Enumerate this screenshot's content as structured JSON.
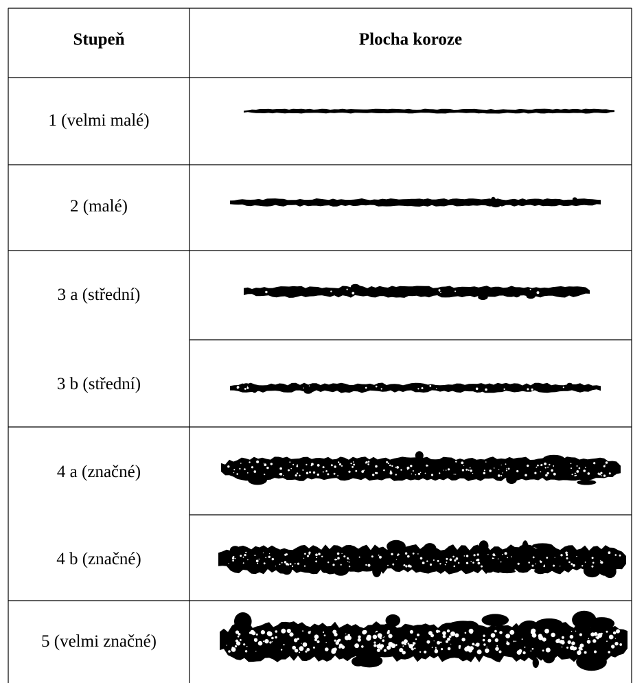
{
  "table": {
    "header": [
      "Stupeň",
      "Plocha koroze"
    ],
    "rows": [
      "1 (velmi malé)",
      "2 (malé)",
      "3 a (střední)",
      "3 b (střední)",
      "4 a (značné)",
      "4 b (značné)",
      "5 (velmi značné)"
    ]
  }
}
